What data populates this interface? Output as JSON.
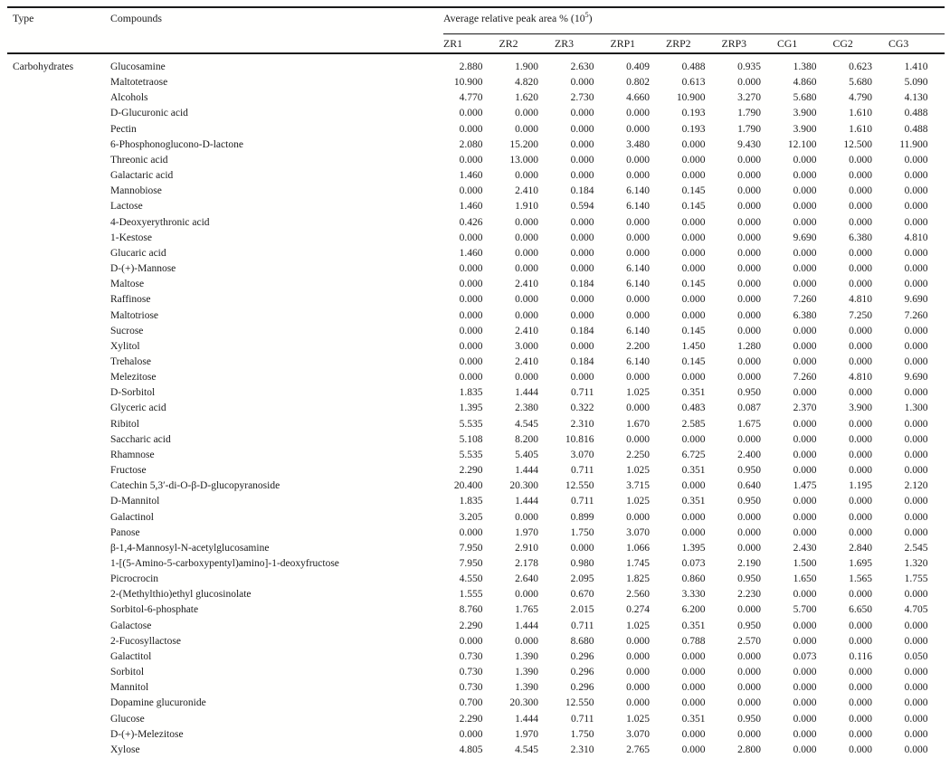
{
  "page": {
    "background_color": "#ffffff",
    "text_color": "#1b1b1b",
    "rule_color": "#1a1a1a"
  },
  "table": {
    "headers": {
      "type": "Type",
      "compounds": "Compounds",
      "group_prefix": "Average relative peak area % (10",
      "group_sup": "5",
      "group_suffix": ")"
    },
    "sample_columns": [
      "ZR1",
      "ZR2",
      "ZR3",
      "ZRP1",
      "ZRP2",
      "ZRP3",
      "CG1",
      "CG2",
      "CG3"
    ],
    "type_group_label": "Carbohydrates",
    "rows": [
      {
        "compound": "Glucosamine",
        "values": [
          "2.880",
          "1.900",
          "2.630",
          "0.409",
          "0.488",
          "0.935",
          "1.380",
          "0.623",
          "1.410"
        ]
      },
      {
        "compound": "Maltotetraose",
        "values": [
          "10.900",
          "4.820",
          "0.000",
          "0.802",
          "0.613",
          "0.000",
          "4.860",
          "5.680",
          "5.090"
        ]
      },
      {
        "compound": "Alcohols",
        "values": [
          "4.770",
          "1.620",
          "2.730",
          "4.660",
          "10.900",
          "3.270",
          "5.680",
          "4.790",
          "4.130"
        ]
      },
      {
        "compound": "D-Glucuronic acid",
        "values": [
          "0.000",
          "0.000",
          "0.000",
          "0.000",
          "0.193",
          "1.790",
          "3.900",
          "1.610",
          "0.488"
        ]
      },
      {
        "compound": "Pectin",
        "values": [
          "0.000",
          "0.000",
          "0.000",
          "0.000",
          "0.193",
          "1.790",
          "3.900",
          "1.610",
          "0.488"
        ]
      },
      {
        "compound": "6-Phosphonoglucono-D-lactone",
        "values": [
          "2.080",
          "15.200",
          "0.000",
          "3.480",
          "0.000",
          "9.430",
          "12.100",
          "12.500",
          "11.900"
        ]
      },
      {
        "compound": "Threonic acid",
        "values": [
          "0.000",
          "13.000",
          "0.000",
          "0.000",
          "0.000",
          "0.000",
          "0.000",
          "0.000",
          "0.000"
        ]
      },
      {
        "compound": "Galactaric acid",
        "values": [
          "1.460",
          "0.000",
          "0.000",
          "0.000",
          "0.000",
          "0.000",
          "0.000",
          "0.000",
          "0.000"
        ]
      },
      {
        "compound": "Mannobiose",
        "values": [
          "0.000",
          "2.410",
          "0.184",
          "6.140",
          "0.145",
          "0.000",
          "0.000",
          "0.000",
          "0.000"
        ]
      },
      {
        "compound": "Lactose",
        "values": [
          "1.460",
          "1.910",
          "0.594",
          "6.140",
          "0.145",
          "0.000",
          "0.000",
          "0.000",
          "0.000"
        ]
      },
      {
        "compound": "4-Deoxyerythronic acid",
        "values": [
          "0.426",
          "0.000",
          "0.000",
          "0.000",
          "0.000",
          "0.000",
          "0.000",
          "0.000",
          "0.000"
        ]
      },
      {
        "compound": "1-Kestose",
        "values": [
          "0.000",
          "0.000",
          "0.000",
          "0.000",
          "0.000",
          "0.000",
          "9.690",
          "6.380",
          "4.810"
        ]
      },
      {
        "compound": "Glucaric acid",
        "values": [
          "1.460",
          "0.000",
          "0.000",
          "0.000",
          "0.000",
          "0.000",
          "0.000",
          "0.000",
          "0.000"
        ]
      },
      {
        "compound": "D-(+)-Mannose",
        "values": [
          "0.000",
          "0.000",
          "0.000",
          "6.140",
          "0.000",
          "0.000",
          "0.000",
          "0.000",
          "0.000"
        ]
      },
      {
        "compound": "Maltose",
        "values": [
          "0.000",
          "2.410",
          "0.184",
          "6.140",
          "0.145",
          "0.000",
          "0.000",
          "0.000",
          "0.000"
        ]
      },
      {
        "compound": "Raffinose",
        "values": [
          "0.000",
          "0.000",
          "0.000",
          "0.000",
          "0.000",
          "0.000",
          "7.260",
          "4.810",
          "9.690"
        ]
      },
      {
        "compound": "Maltotriose",
        "values": [
          "0.000",
          "0.000",
          "0.000",
          "0.000",
          "0.000",
          "0.000",
          "6.380",
          "7.250",
          "7.260"
        ]
      },
      {
        "compound": "Sucrose",
        "values": [
          "0.000",
          "2.410",
          "0.184",
          "6.140",
          "0.145",
          "0.000",
          "0.000",
          "0.000",
          "0.000"
        ]
      },
      {
        "compound": "Xylitol",
        "values": [
          "0.000",
          "3.000",
          "0.000",
          "2.200",
          "1.450",
          "1.280",
          "0.000",
          "0.000",
          "0.000"
        ]
      },
      {
        "compound": "Trehalose",
        "values": [
          "0.000",
          "2.410",
          "0.184",
          "6.140",
          "0.145",
          "0.000",
          "0.000",
          "0.000",
          "0.000"
        ]
      },
      {
        "compound": "Melezitose",
        "values": [
          "0.000",
          "0.000",
          "0.000",
          "0.000",
          "0.000",
          "0.000",
          "7.260",
          "4.810",
          "9.690"
        ]
      },
      {
        "compound": "D-Sorbitol",
        "values": [
          "1.835",
          "1.444",
          "0.711",
          "1.025",
          "0.351",
          "0.950",
          "0.000",
          "0.000",
          "0.000"
        ]
      },
      {
        "compound": "Glyceric acid",
        "values": [
          "1.395",
          "2.380",
          "0.322",
          "0.000",
          "0.483",
          "0.087",
          "2.370",
          "3.900",
          "1.300"
        ]
      },
      {
        "compound": "Ribitol",
        "values": [
          "5.535",
          "4.545",
          "2.310",
          "1.670",
          "2.585",
          "1.675",
          "0.000",
          "0.000",
          "0.000"
        ]
      },
      {
        "compound": "Saccharic acid",
        "values": [
          "5.108",
          "8.200",
          "10.816",
          "0.000",
          "0.000",
          "0.000",
          "0.000",
          "0.000",
          "0.000"
        ]
      },
      {
        "compound": "Rhamnose",
        "values": [
          "5.535",
          "5.405",
          "3.070",
          "2.250",
          "6.725",
          "2.400",
          "0.000",
          "0.000",
          "0.000"
        ]
      },
      {
        "compound": "Fructose",
        "values": [
          "2.290",
          "1.444",
          "0.711",
          "1.025",
          "0.351",
          "0.950",
          "0.000",
          "0.000",
          "0.000"
        ]
      },
      {
        "compound": "Catechin 5,3′-di-O-β-D-glucopyranoside",
        "values": [
          "20.400",
          "20.300",
          "12.550",
          "3.715",
          "0.000",
          "0.640",
          "1.475",
          "1.195",
          "2.120"
        ]
      },
      {
        "compound": "D-Mannitol",
        "values": [
          "1.835",
          "1.444",
          "0.711",
          "1.025",
          "0.351",
          "0.950",
          "0.000",
          "0.000",
          "0.000"
        ]
      },
      {
        "compound": "Galactinol",
        "values": [
          "3.205",
          "0.000",
          "0.899",
          "0.000",
          "0.000",
          "0.000",
          "0.000",
          "0.000",
          "0.000"
        ]
      },
      {
        "compound": "Panose",
        "values": [
          "0.000",
          "1.970",
          "1.750",
          "3.070",
          "0.000",
          "0.000",
          "0.000",
          "0.000",
          "0.000"
        ]
      },
      {
        "compound": "β-1,4-Mannosyl-N-acetylglucosamine",
        "values": [
          "7.950",
          "2.910",
          "0.000",
          "1.066",
          "1.395",
          "0.000",
          "2.430",
          "2.840",
          "2.545"
        ]
      },
      {
        "compound": "1-[(5-Amino-5-carboxypentyl)amino]-1-deoxyfructose",
        "values": [
          "7.950",
          "2.178",
          "0.980",
          "1.745",
          "0.073",
          "2.190",
          "1.500",
          "1.695",
          "1.320"
        ]
      },
      {
        "compound": "Picrocrocin",
        "values": [
          "4.550",
          "2.640",
          "2.095",
          "1.825",
          "0.860",
          "0.950",
          "1.650",
          "1.565",
          "1.755"
        ]
      },
      {
        "compound": "2-(Methylthio)ethyl glucosinolate",
        "values": [
          "1.555",
          "0.000",
          "0.670",
          "2.560",
          "3.330",
          "2.230",
          "0.000",
          "0.000",
          "0.000"
        ]
      },
      {
        "compound": "Sorbitol-6-phosphate",
        "values": [
          "8.760",
          "1.765",
          "2.015",
          "0.274",
          "6.200",
          "0.000",
          "5.700",
          "6.650",
          "4.705"
        ]
      },
      {
        "compound": "Galactose",
        "values": [
          "2.290",
          "1.444",
          "0.711",
          "1.025",
          "0.351",
          "0.950",
          "0.000",
          "0.000",
          "0.000"
        ]
      },
      {
        "compound": "2-Fucosyllactose",
        "values": [
          "0.000",
          "0.000",
          "8.680",
          "0.000",
          "0.788",
          "2.570",
          "0.000",
          "0.000",
          "0.000"
        ]
      },
      {
        "compound": "Galactitol",
        "values": [
          "0.730",
          "1.390",
          "0.296",
          "0.000",
          "0.000",
          "0.000",
          "0.073",
          "0.116",
          "0.050"
        ]
      },
      {
        "compound": "Sorbitol",
        "values": [
          "0.730",
          "1.390",
          "0.296",
          "0.000",
          "0.000",
          "0.000",
          "0.000",
          "0.000",
          "0.000"
        ]
      },
      {
        "compound": "Mannitol",
        "values": [
          "0.730",
          "1.390",
          "0.296",
          "0.000",
          "0.000",
          "0.000",
          "0.000",
          "0.000",
          "0.000"
        ]
      },
      {
        "compound": "Dopamine glucuronide",
        "values": [
          "0.700",
          "20.300",
          "12.550",
          "0.000",
          "0.000",
          "0.000",
          "0.000",
          "0.000",
          "0.000"
        ]
      },
      {
        "compound": "Glucose",
        "values": [
          "2.290",
          "1.444",
          "0.711",
          "1.025",
          "0.351",
          "0.950",
          "0.000",
          "0.000",
          "0.000"
        ]
      },
      {
        "compound": "D-(+)-Melezitose",
        "values": [
          "0.000",
          "1.970",
          "1.750",
          "3.070",
          "0.000",
          "0.000",
          "0.000",
          "0.000",
          "0.000"
        ]
      },
      {
        "compound": "Xylose",
        "values": [
          "4.805",
          "4.545",
          "2.310",
          "2.765",
          "0.000",
          "2.800",
          "0.000",
          "0.000",
          "0.000"
        ]
      }
    ]
  }
}
